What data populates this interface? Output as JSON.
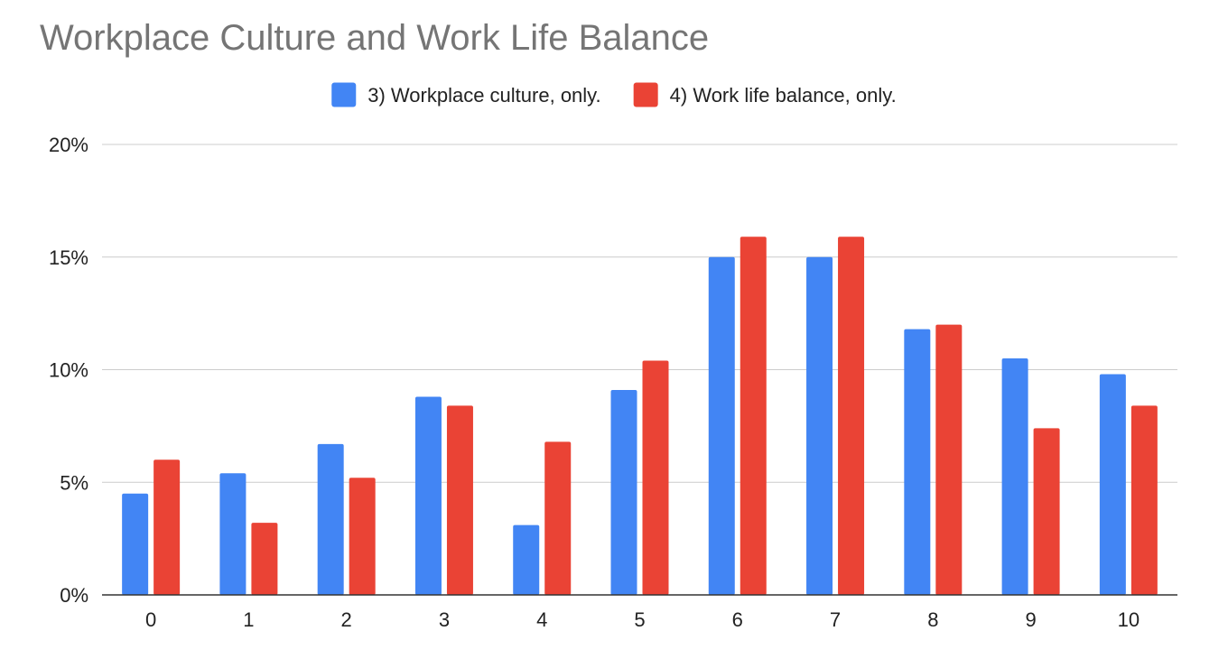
{
  "chart_data": {
    "type": "bar",
    "title": "Workplace Culture and Work Life Balance",
    "xlabel": "",
    "ylabel": "",
    "categories": [
      "0",
      "1",
      "2",
      "3",
      "4",
      "5",
      "6",
      "7",
      "8",
      "9",
      "10"
    ],
    "series": [
      {
        "name": "3) Workplace culture, only.",
        "color": "#4285f4",
        "values": [
          4.5,
          5.4,
          6.7,
          8.8,
          3.1,
          9.1,
          15.0,
          15.0,
          11.8,
          10.5,
          9.8
        ]
      },
      {
        "name": "4) Work life balance, only.",
        "color": "#ea4335",
        "values": [
          6.0,
          3.2,
          5.2,
          8.4,
          6.8,
          10.4,
          15.9,
          15.9,
          12.0,
          7.4,
          8.4
        ]
      }
    ],
    "ylim": [
      0,
      20
    ],
    "yticks": [
      {
        "value": 0,
        "label": "0%"
      },
      {
        "value": 5,
        "label": "5%"
      },
      {
        "value": 10,
        "label": "10%"
      },
      {
        "value": 15,
        "label": "15%"
      },
      {
        "value": 20,
        "label": "20%"
      }
    ],
    "grid": true,
    "legend_position": "top"
  }
}
